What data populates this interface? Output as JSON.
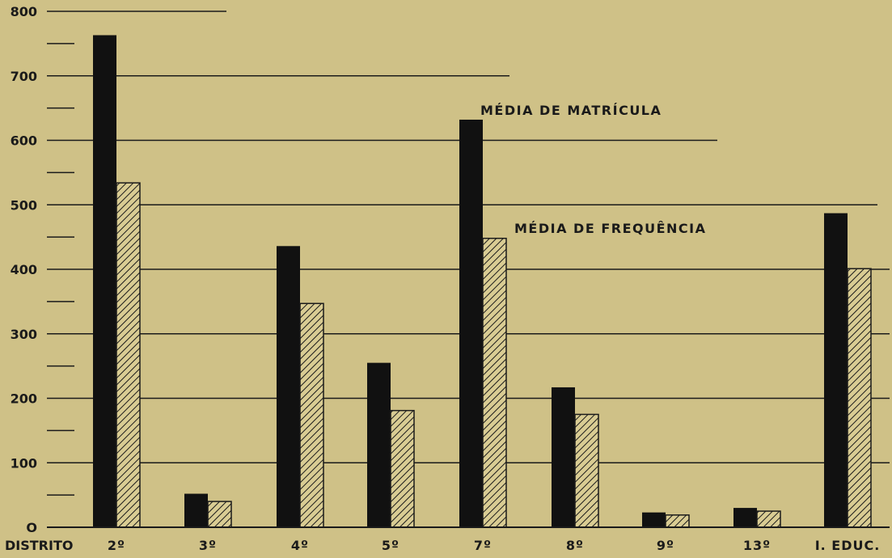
{
  "colors": {
    "background": "#cfc187",
    "matricula": "#111111",
    "frequencia_stroke": "#1a1a1a",
    "frequencia_fill": "#d9cc93",
    "grid": "#1a1a1a"
  },
  "chart_data": {
    "type": "bar",
    "title": "",
    "xlabel": "DISTRITO",
    "ylabel": "",
    "ylim": [
      0,
      800
    ],
    "yticks": [
      0,
      100,
      200,
      300,
      400,
      500,
      600,
      700,
      800
    ],
    "ytick_labels": [
      "O",
      "100",
      "200",
      "300",
      "400",
      "500",
      "600",
      "700",
      "800"
    ],
    "categories": [
      "2º",
      "3º",
      "4º",
      "5º",
      "7º",
      "8º",
      "9º",
      "13º",
      "I. EDUC."
    ],
    "series": [
      {
        "name": "MÉDIA DE MATRÍCULA",
        "pattern": "solid",
        "values": [
          763,
          52,
          436,
          255,
          632,
          217,
          23,
          30,
          487
        ]
      },
      {
        "name": "MÉDIA DE FREQUÊNCIA",
        "pattern": "hatched",
        "values": [
          534,
          40,
          347,
          181,
          448,
          175,
          19,
          25,
          401
        ]
      }
    ],
    "grid": true,
    "legend": "inline labels"
  }
}
